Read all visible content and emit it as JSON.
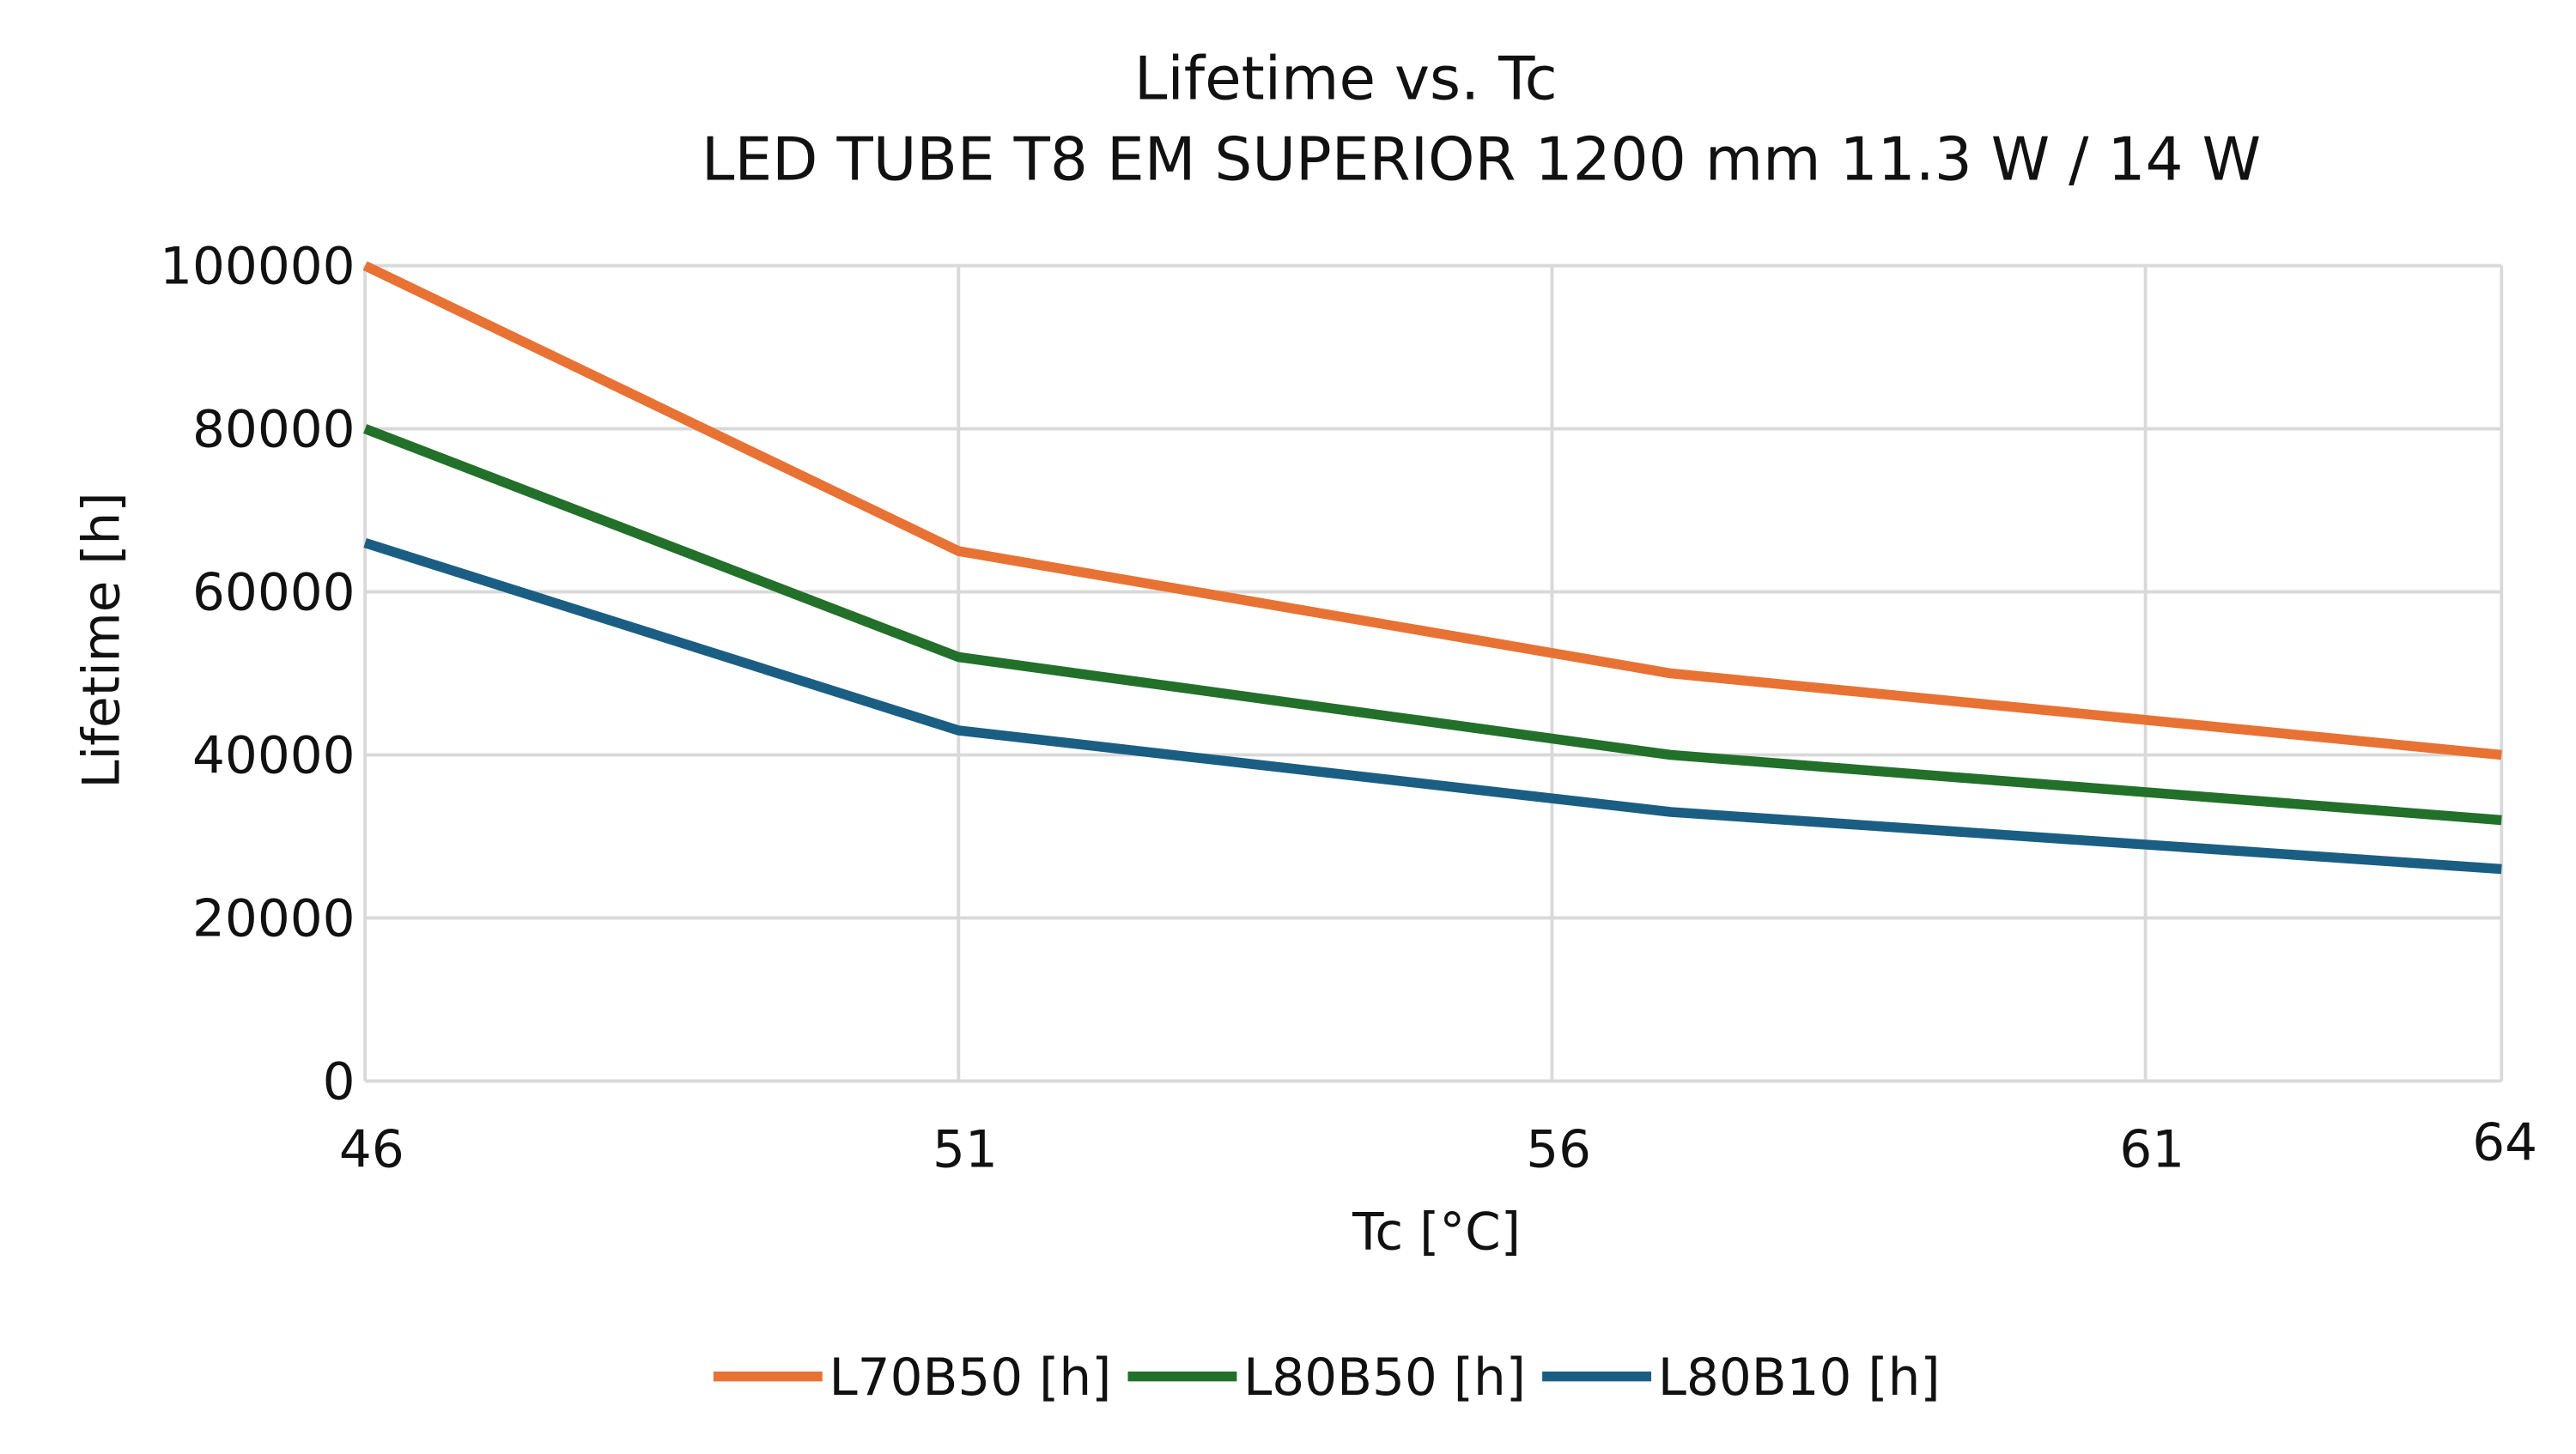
{
  "chart_data": {
    "type": "line",
    "title": "Lifetime vs. Tc",
    "subtitle": "LED TUBE T8 EM SUPERIOR 1200 mm 11.3 W / 14 W",
    "xlabel": "Tc [°C]",
    "ylabel": "Lifetime [h]",
    "xlim": [
      46,
      64
    ],
    "ylim": [
      0,
      100000
    ],
    "x_ticks": [
      46,
      51,
      56,
      61,
      64
    ],
    "y_ticks": [
      0,
      20000,
      40000,
      60000,
      80000,
      100000
    ],
    "grid": true,
    "legend_position": "bottom",
    "x": [
      46,
      51,
      57,
      64
    ],
    "series": [
      {
        "name": "L70B50 [h]",
        "color": "#E87234",
        "values": [
          100000,
          65000,
          50000,
          40000
        ]
      },
      {
        "name": "L80B50 [h]",
        "color": "#22702A",
        "values": [
          80000,
          52000,
          40000,
          32000
        ]
      },
      {
        "name": "L80B10 [h]",
        "color": "#1B5E83",
        "values": [
          66000,
          43000,
          33000,
          26000
        ]
      }
    ]
  }
}
